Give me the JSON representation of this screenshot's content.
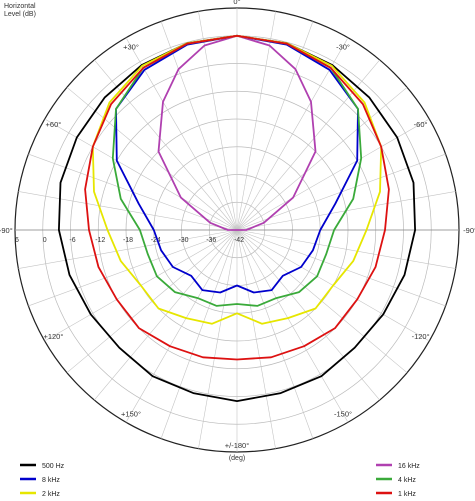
{
  "header": {
    "line1": "Horizontal",
    "line2": "Level  (dB)"
  },
  "chart_data": {
    "type": "polar-line",
    "angular_unit_label": "(deg)",
    "angle_labels": [
      {
        "angle": 0,
        "text": "0°"
      },
      {
        "angle": 30,
        "text": "-30°"
      },
      {
        "angle": 60,
        "text": "-60°"
      },
      {
        "angle": 90,
        "text": "-90°"
      },
      {
        "angle": 120,
        "text": "-120°"
      },
      {
        "angle": 150,
        "text": "-150°"
      },
      {
        "angle": 180,
        "text": "+/-180°"
      },
      {
        "angle": -150,
        "text": "+150°"
      },
      {
        "angle": -120,
        "text": "+120°"
      },
      {
        "angle": -90,
        "text": "+90°"
      },
      {
        "angle": -60,
        "text": "+60°"
      },
      {
        "angle": -30,
        "text": "+30°"
      }
    ],
    "radial_unit": "dB",
    "radial_range": [
      -42,
      6
    ],
    "radial_ticks": [
      "6",
      "0",
      "-6",
      "-12",
      "-18",
      "-24",
      "-30",
      "-36",
      "-42"
    ],
    "series": [
      {
        "name": "500 Hz",
        "color": "#000000",
        "angles": [
          -180,
          -165,
          -150,
          -135,
          -120,
          -105,
          -90,
          -75,
          -60,
          -45,
          -30,
          -15,
          0,
          15,
          30,
          45,
          60,
          75,
          90,
          105,
          120,
          135,
          150,
          165,
          180
        ],
        "values": [
          -5,
          -5.5,
          -5.5,
          -6,
          -5.5,
          -4.5,
          -3.5,
          -2.5,
          -2,
          -1.5,
          -0.8,
          -0.2,
          0,
          -0.2,
          -0.8,
          -1.5,
          -2,
          -2.5,
          -3.5,
          -4.5,
          -5.5,
          -6,
          -5.5,
          -5.5,
          -5
        ]
      },
      {
        "name": "16 kHz",
        "color": "#b040b0",
        "angles": [
          -180,
          -150,
          -120,
          -90,
          -75,
          -60,
          -45,
          -30,
          -20,
          -10,
          0,
          10,
          20,
          30,
          45,
          60,
          75,
          90,
          120,
          150,
          180
        ],
        "values": [
          -42,
          -42,
          -42,
          -40,
          -36,
          -28,
          -18,
          -10,
          -5,
          -1.5,
          0,
          -1.5,
          -5,
          -10,
          -18,
          -28,
          -36,
          -40,
          -42,
          -42,
          -42
        ]
      },
      {
        "name": "8 kHz",
        "color": "#0000cc",
        "angles": [
          -180,
          -165,
          -150,
          -135,
          -120,
          -105,
          -90,
          -75,
          -60,
          -45,
          -30,
          -15,
          0,
          15,
          30,
          45,
          60,
          75,
          90,
          105,
          120,
          135,
          150,
          165,
          180
        ],
        "values": [
          -30,
          -28,
          -27,
          -28,
          -26,
          -25,
          -24,
          -20,
          -12,
          -5,
          -2,
          -0.5,
          0,
          -0.5,
          -2,
          -5,
          -12,
          -20,
          -24,
          -25,
          -26,
          -28,
          -27,
          -28,
          -30
        ]
      },
      {
        "name": "4 kHz",
        "color": "#3aaa3a",
        "angles": [
          -180,
          -165,
          -150,
          -135,
          -120,
          -105,
          -90,
          -75,
          -60,
          -45,
          -30,
          -15,
          0,
          15,
          30,
          45,
          60,
          75,
          90,
          105,
          120,
          135,
          150,
          165,
          180
        ],
        "values": [
          -26,
          -25,
          -25,
          -23,
          -22,
          -22,
          -21,
          -16,
          -11,
          -5,
          -1.5,
          -0.3,
          0,
          -0.3,
          -1.5,
          -5,
          -11,
          -16,
          -21,
          -22,
          -22,
          -23,
          -25,
          -25,
          -26
        ]
      },
      {
        "name": "2 kHz",
        "color": "#e6e600",
        "angles": [
          -180,
          -165,
          -150,
          -135,
          -120,
          -105,
          -90,
          -75,
          -60,
          -45,
          -30,
          -15,
          0,
          15,
          30,
          45,
          60,
          75,
          90,
          105,
          120,
          135,
          150,
          165,
          180
        ],
        "values": [
          -24,
          -21,
          -20,
          -18,
          -18,
          -16,
          -14,
          -10,
          -6,
          -3,
          -1,
          -0.2,
          0,
          -0.2,
          -1,
          -3,
          -6,
          -10,
          -14,
          -16,
          -18,
          -18,
          -20,
          -21,
          -24
        ]
      },
      {
        "name": "1 kHz",
        "color": "#dd1111",
        "angles": [
          -180,
          -165,
          -150,
          -135,
          -120,
          -105,
          -90,
          -75,
          -60,
          -45,
          -30,
          -15,
          0,
          15,
          30,
          45,
          60,
          75,
          90,
          105,
          120,
          135,
          150,
          165,
          180
        ],
        "values": [
          -14,
          -13.5,
          -13,
          -12,
          -12,
          -11,
          -10,
          -8,
          -6,
          -3.5,
          -1.5,
          -0.3,
          0,
          -0.3,
          -1.5,
          -3.5,
          -6,
          -8,
          -10,
          -11,
          -12,
          -12,
          -13,
          -13.5,
          -14
        ]
      }
    ],
    "legend": {
      "placement": "bottom",
      "columns": 3
    }
  }
}
